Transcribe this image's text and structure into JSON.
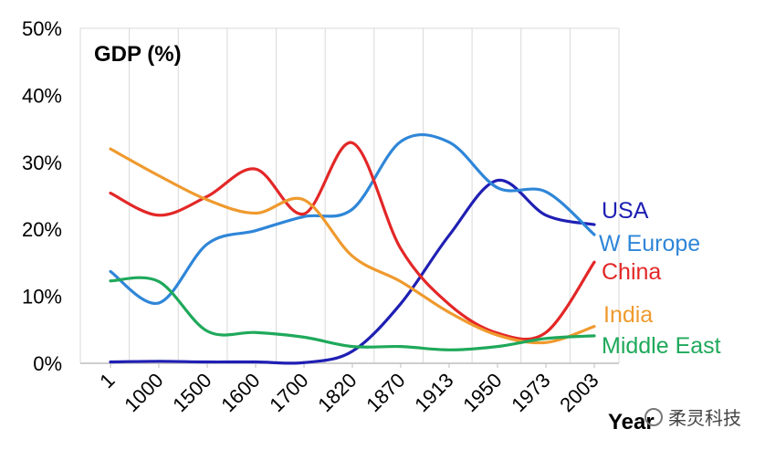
{
  "chart_data": {
    "type": "line",
    "title": "GDP (%)",
    "xlabel": "Year",
    "ylabel": "",
    "ylim": [
      0,
      50
    ],
    "yticks": [
      "0%",
      "10%",
      "20%",
      "30%",
      "40%",
      "50%"
    ],
    "categories": [
      "1",
      "1000",
      "1500",
      "1600",
      "1700",
      "1820",
      "1870",
      "1913",
      "1950",
      "1973",
      "2003"
    ],
    "grid": "vertical",
    "series": [
      {
        "name": "USA",
        "color": "#1f1fb4",
        "values": [
          0.2,
          0.3,
          0.2,
          0.2,
          0.1,
          1.8,
          8.9,
          19.1,
          27.3,
          22.1,
          20.7
        ]
      },
      {
        "name": "W Europe",
        "color": "#2f86d8",
        "values": [
          13.7,
          9.0,
          17.8,
          19.8,
          21.9,
          23.0,
          33.1,
          33.0,
          26.2,
          25.6,
          19.2
        ]
      },
      {
        "name": "China",
        "color": "#e32727",
        "values": [
          25.4,
          22.1,
          24.9,
          29.0,
          22.3,
          32.9,
          17.1,
          8.8,
          4.5,
          4.6,
          15.1
        ]
      },
      {
        "name": "India",
        "color": "#ef9a2e",
        "values": [
          32.0,
          28.0,
          24.4,
          22.4,
          24.4,
          16.0,
          12.2,
          7.6,
          4.2,
          3.1,
          5.5
        ]
      },
      {
        "name": "Middle East",
        "color": "#1fa95b",
        "values": [
          12.3,
          12.2,
          4.8,
          4.6,
          3.9,
          2.5,
          2.5,
          2.0,
          2.5,
          3.7,
          4.1
        ]
      }
    ]
  },
  "watermark": {
    "text": "柔灵科技"
  }
}
